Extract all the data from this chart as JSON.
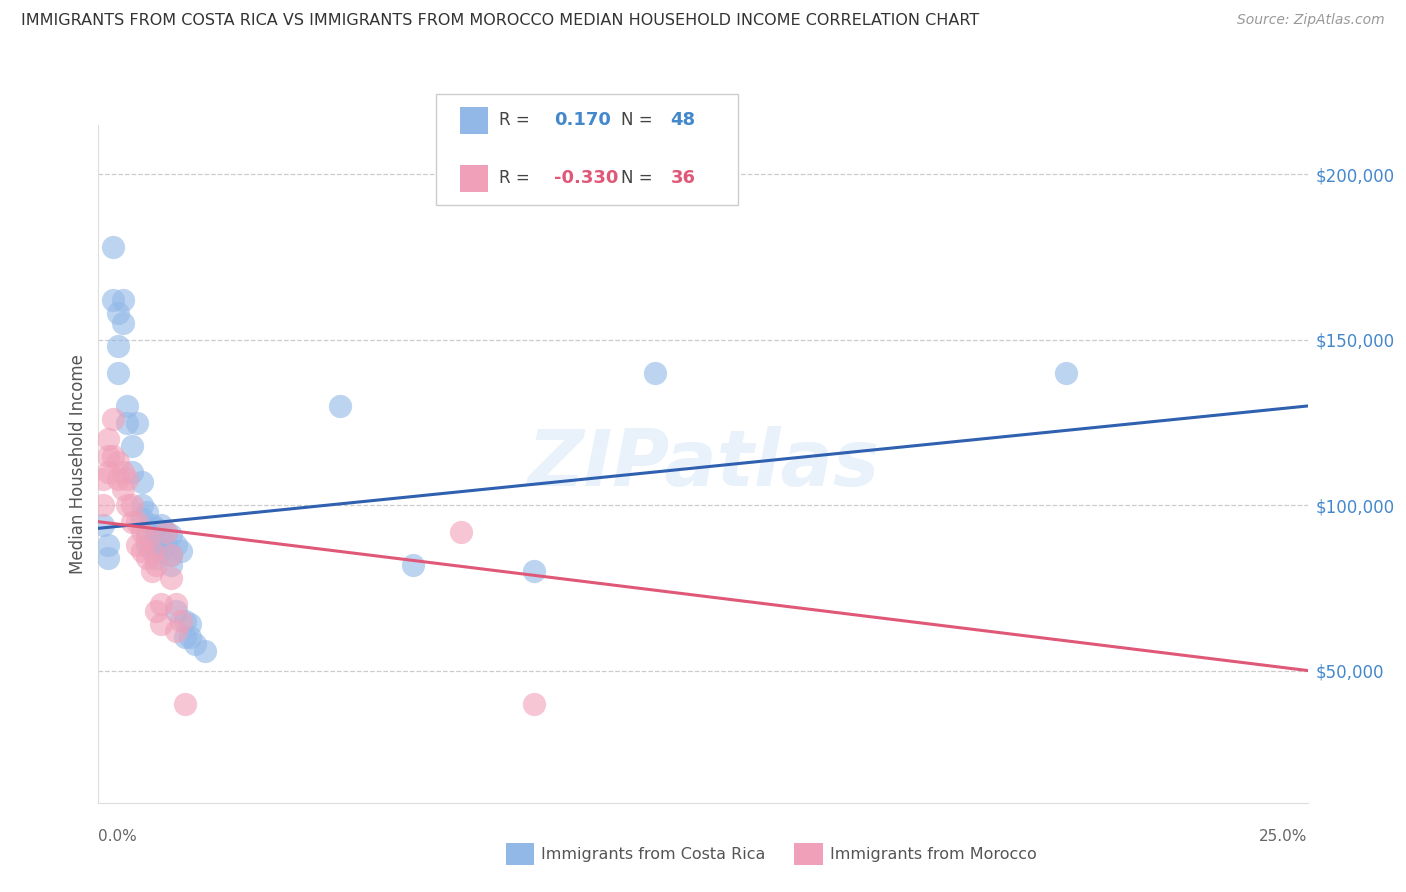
{
  "title": "IMMIGRANTS FROM COSTA RICA VS IMMIGRANTS FROM MOROCCO MEDIAN HOUSEHOLD INCOME CORRELATION CHART",
  "source": "Source: ZipAtlas.com",
  "ylabel": "Median Household Income",
  "ytick_labels": [
    "$50,000",
    "$100,000",
    "$150,000",
    "$200,000"
  ],
  "ytick_values": [
    50000,
    100000,
    150000,
    200000
  ],
  "ymin": 10000,
  "ymax": 215000,
  "xmin": 0.0,
  "xmax": 0.25,
  "watermark": "ZIPatlas",
  "legend_blue_r": "0.170",
  "legend_blue_n": "48",
  "legend_pink_r": "-0.330",
  "legend_pink_n": "36",
  "legend_label_blue": "Immigrants from Costa Rica",
  "legend_label_pink": "Immigrants from Morocco",
  "blue_color": "#92b8e8",
  "pink_color": "#f0a0b8",
  "blue_line_color": "#3060b0",
  "pink_line_color": "#e05878",
  "blue_r": 0.17,
  "pink_r": -0.33,
  "scatter_blue": [
    [
      0.001,
      94000
    ],
    [
      0.002,
      88000
    ],
    [
      0.002,
      84000
    ],
    [
      0.003,
      178000
    ],
    [
      0.003,
      162000
    ],
    [
      0.004,
      158000
    ],
    [
      0.004,
      148000
    ],
    [
      0.004,
      140000
    ],
    [
      0.005,
      162000
    ],
    [
      0.005,
      155000
    ],
    [
      0.006,
      130000
    ],
    [
      0.006,
      125000
    ],
    [
      0.007,
      118000
    ],
    [
      0.007,
      110000
    ],
    [
      0.008,
      125000
    ],
    [
      0.009,
      107000
    ],
    [
      0.009,
      100000
    ],
    [
      0.009,
      96000
    ],
    [
      0.01,
      98000
    ],
    [
      0.01,
      92000
    ],
    [
      0.01,
      88000
    ],
    [
      0.011,
      94000
    ],
    [
      0.011,
      88000
    ],
    [
      0.012,
      93000
    ],
    [
      0.012,
      88000
    ],
    [
      0.012,
      84000
    ],
    [
      0.013,
      94000
    ],
    [
      0.013,
      90000
    ],
    [
      0.013,
      86000
    ],
    [
      0.014,
      92000
    ],
    [
      0.014,
      88000
    ],
    [
      0.015,
      91000
    ],
    [
      0.015,
      85000
    ],
    [
      0.015,
      82000
    ],
    [
      0.016,
      88000
    ],
    [
      0.016,
      68000
    ],
    [
      0.017,
      86000
    ],
    [
      0.018,
      65000
    ],
    [
      0.018,
      60000
    ],
    [
      0.019,
      64000
    ],
    [
      0.019,
      60000
    ],
    [
      0.02,
      58000
    ],
    [
      0.022,
      56000
    ],
    [
      0.05,
      130000
    ],
    [
      0.065,
      82000
    ],
    [
      0.09,
      80000
    ],
    [
      0.115,
      140000
    ],
    [
      0.2,
      140000
    ]
  ],
  "scatter_pink": [
    [
      0.001,
      108000
    ],
    [
      0.001,
      100000
    ],
    [
      0.002,
      120000
    ],
    [
      0.002,
      115000
    ],
    [
      0.002,
      110000
    ],
    [
      0.003,
      126000
    ],
    [
      0.003,
      115000
    ],
    [
      0.004,
      113000
    ],
    [
      0.004,
      108000
    ],
    [
      0.005,
      110000
    ],
    [
      0.005,
      105000
    ],
    [
      0.006,
      108000
    ],
    [
      0.006,
      100000
    ],
    [
      0.007,
      100000
    ],
    [
      0.007,
      95000
    ],
    [
      0.008,
      95000
    ],
    [
      0.008,
      88000
    ],
    [
      0.009,
      92000
    ],
    [
      0.009,
      86000
    ],
    [
      0.01,
      90000
    ],
    [
      0.01,
      84000
    ],
    [
      0.011,
      86000
    ],
    [
      0.011,
      80000
    ],
    [
      0.012,
      82000
    ],
    [
      0.012,
      68000
    ],
    [
      0.013,
      70000
    ],
    [
      0.013,
      64000
    ],
    [
      0.014,
      92000
    ],
    [
      0.015,
      85000
    ],
    [
      0.015,
      78000
    ],
    [
      0.016,
      70000
    ],
    [
      0.016,
      62000
    ],
    [
      0.017,
      65000
    ],
    [
      0.018,
      40000
    ],
    [
      0.075,
      92000
    ],
    [
      0.09,
      40000
    ]
  ],
  "grid_color": "#cccccc",
  "bg_color": "#ffffff",
  "title_color": "#333333"
}
